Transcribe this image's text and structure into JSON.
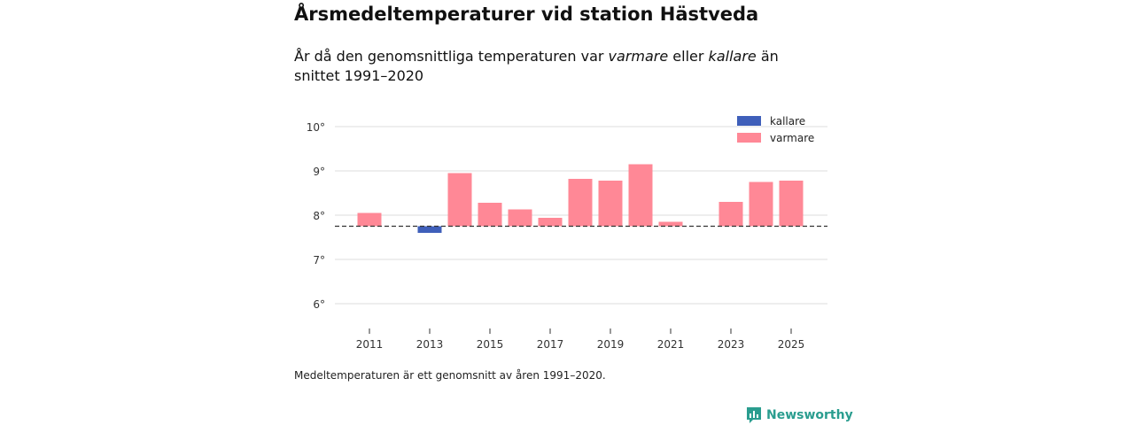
{
  "header": {
    "title": "Årsmedeltemperaturer vid station Hästveda",
    "subtitle_prefix": "År då den genomsnittliga temperaturen var ",
    "subtitle_warm": "varmare",
    "subtitle_mid": " eller ",
    "subtitle_cold": "kallare",
    "subtitle_suffix": " än snittet 1991–2020"
  },
  "footnote": "Medeltemperaturen är ett genomsnitt av åren 1991–2020.",
  "brand": {
    "name": "Newsworthy",
    "icon": "newsworthy-logo-icon",
    "color": "#2a9d8f"
  },
  "colors": {
    "warm": "#ff8896",
    "cold": "#3f5fba",
    "grid": "#dddddd",
    "baseline": "#333333"
  },
  "chart_data": {
    "type": "bar",
    "title": "Årsmedeltemperaturer vid station Hästveda",
    "xlabel": "",
    "ylabel": "",
    "baseline": 7.75,
    "ylim": [
      5.6,
      10.3
    ],
    "yticks": [
      6,
      7,
      8,
      9,
      10
    ],
    "ytick_labels": [
      "6°",
      "7°",
      "8°",
      "9°",
      "10°"
    ],
    "xticks": [
      2011,
      2013,
      2015,
      2017,
      2019,
      2021,
      2023,
      2025
    ],
    "xtick_labels": [
      "2011",
      "2013",
      "2015",
      "2017",
      "2019",
      "2021",
      "2023",
      "2025"
    ],
    "years": [
      2011,
      2012,
      2013,
      2014,
      2015,
      2016,
      2017,
      2018,
      2019,
      2020,
      2021,
      2022,
      2023,
      2024,
      2025
    ],
    "values": [
      8.05,
      null,
      7.6,
      8.95,
      8.28,
      8.13,
      7.94,
      8.82,
      8.78,
      9.15,
      7.85,
      null,
      8.3,
      8.75,
      8.78
    ],
    "legend": [
      {
        "key": "cold",
        "label": "kallare"
      },
      {
        "key": "warm",
        "label": "varmare"
      }
    ],
    "legend_position": "top-right",
    "grid": true
  }
}
